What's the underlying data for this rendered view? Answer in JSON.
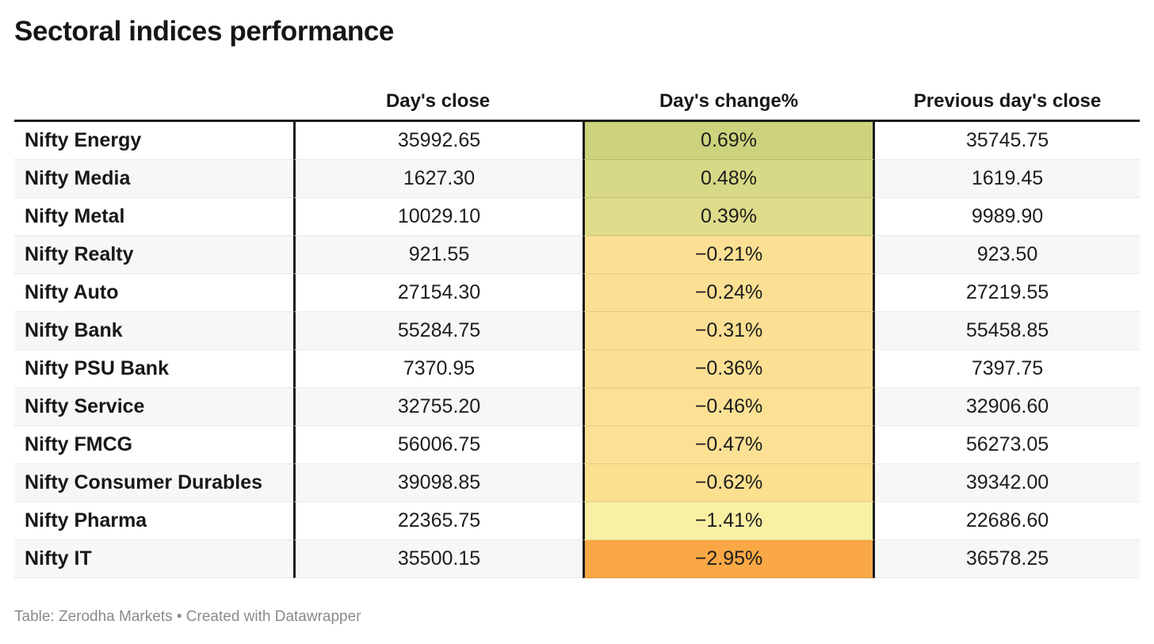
{
  "title": "Sectoral indices performance",
  "footer": {
    "text": "Table: Zerodha Markets • Created with Datawrapper"
  },
  "palette": {
    "header_rule": "#1c1c1c",
    "alt_row_bg": "#f7f7f7",
    "row_separator": "#e9e9e9",
    "text": "#1d1d1d",
    "footer_text": "#8b8b8b"
  },
  "chart_data": {
    "type": "table",
    "title": "Sectoral indices performance",
    "source_note": "Table: Zerodha Markets • Created with Datawrapper",
    "columns": [
      "",
      "Day's close",
      "Day's change%",
      "Previous day's close"
    ],
    "heatmap_column": "Day's change%",
    "rows": [
      {
        "label": "Nifty Energy",
        "days_close": "35992.65",
        "days_change_pct": "0.69%",
        "prev_close": "35745.75",
        "change_bg": "#ccd37c"
      },
      {
        "label": "Nifty Media",
        "days_close": "1627.30",
        "days_change_pct": "0.48%",
        "prev_close": "1619.45",
        "change_bg": "#d7d986"
      },
      {
        "label": "Nifty Metal",
        "days_close": "10029.10",
        "days_change_pct": "0.39%",
        "prev_close": "9989.90",
        "change_bg": "#dedb8a"
      },
      {
        "label": "Nifty Realty",
        "days_close": "921.55",
        "days_change_pct": "−0.21%",
        "prev_close": "923.50",
        "change_bg": "#fbe093"
      },
      {
        "label": "Nifty Auto",
        "days_close": "27154.30",
        "days_change_pct": "−0.24%",
        "prev_close": "27219.55",
        "change_bg": "#fbe093"
      },
      {
        "label": "Nifty Bank",
        "days_close": "55284.75",
        "days_change_pct": "−0.31%",
        "prev_close": "55458.85",
        "change_bg": "#fbe093"
      },
      {
        "label": "Nifty PSU Bank",
        "days_close": "7370.95",
        "days_change_pct": "−0.36%",
        "prev_close": "7397.75",
        "change_bg": "#fbe093"
      },
      {
        "label": "Nifty Service",
        "days_close": "32755.20",
        "days_change_pct": "−0.46%",
        "prev_close": "32906.60",
        "change_bg": "#fce195"
      },
      {
        "label": "Nifty FMCG",
        "days_close": "56006.75",
        "days_change_pct": "−0.47%",
        "prev_close": "56273.05",
        "change_bg": "#fce195"
      },
      {
        "label": "Nifty Consumer Durables",
        "days_close": "39098.85",
        "days_change_pct": "−0.62%",
        "prev_close": "39342.00",
        "change_bg": "#fbe08f"
      },
      {
        "label": "Nifty Pharma",
        "days_close": "22365.75",
        "days_change_pct": "−1.41%",
        "prev_close": "22686.60",
        "change_bg": "#faf0a4"
      },
      {
        "label": "Nifty IT",
        "days_close": "35500.15",
        "days_change_pct": "−2.95%",
        "prev_close": "36578.25",
        "change_bg": "#faa845"
      }
    ]
  }
}
